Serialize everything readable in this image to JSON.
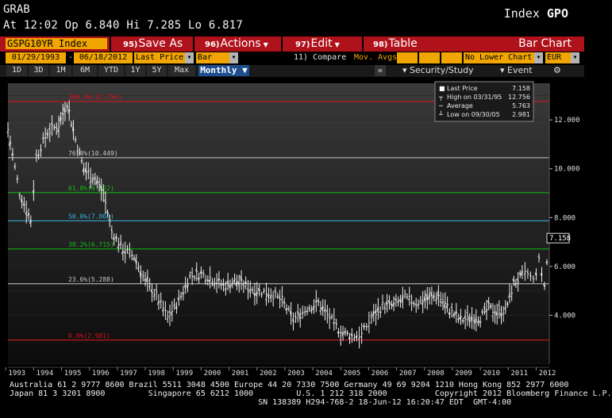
{
  "header": {
    "function": "GRAB",
    "quote_line": "At 12:02  Op 6.840 Hi 7.285 Lo 6.817",
    "index_label": "Index",
    "index_code": "GPO"
  },
  "toolbar": {
    "ticker": "GSPG10YR Index",
    "save_num": "95)",
    "save_label": "Save As",
    "actions_num": "96)",
    "actions_label": "Actions",
    "edit_num": "97)",
    "edit_label": "Edit",
    "table_num": "98)",
    "table_label": "Table",
    "chart_type": "Bar Chart"
  },
  "options": {
    "start_date": "01/29/1993",
    "end_date": "06/18/2012",
    "dash": "-",
    "field": "Last Price",
    "style": "Bar",
    "compare": "11) Compare",
    "mov_avgs": "Mov. Avgs",
    "lower_chart": "No Lower Chart",
    "currency": "EUR"
  },
  "periods": [
    "1D",
    "3D",
    "1M",
    "6M",
    "YTD",
    "1Y",
    "5Y",
    "Max"
  ],
  "period_selected": "Monthly",
  "right_tools": {
    "security_study": "Security/Study",
    "event": "Event"
  },
  "legend": {
    "rows": [
      {
        "label": "Last Price",
        "value": "7.158"
      },
      {
        "label": "High on 03/31/95",
        "value": "12.756"
      },
      {
        "label": "Average",
        "value": "5.763"
      },
      {
        "label": "Low on 09/30/05",
        "value": "2.981"
      }
    ]
  },
  "last_price_tag": "7.158",
  "fib_labels": [
    {
      "text": "100.0%(12.756)",
      "y": 12.756,
      "color": "#e0101c"
    },
    {
      "text": "76.4%(10.449)",
      "y": 10.449,
      "color": "#c8c8c8"
    },
    {
      "text": "61.8%(9.022)",
      "y": 9.022,
      "color": "#12c012"
    },
    {
      "text": "50.0%(7.868)",
      "y": 7.868,
      "color": "#34b6e0"
    },
    {
      "text": "38.2%(6.715)",
      "y": 6.715,
      "color": "#12c012"
    },
    {
      "text": "23.6%(5.288)",
      "y": 5.288,
      "color": "#c8c8c8"
    },
    {
      "text": "0.0%(2.981)",
      "y": 2.981,
      "color": "#e0101c"
    }
  ],
  "chart_data": {
    "type": "line",
    "ylim": [
      2.0,
      13.5
    ],
    "y_ticks": [
      "12.000",
      "10.000",
      "8.000",
      "6.000",
      "4.000"
    ],
    "y_tick_values": [
      12,
      10,
      8,
      6,
      4
    ],
    "x_ticks": [
      "1993",
      "1994",
      "1995",
      "1996",
      "1997",
      "1998",
      "1999",
      "2000",
      "2001",
      "2002",
      "2003",
      "2004",
      "2005",
      "2006",
      "2007",
      "2008",
      "2009",
      "2010",
      "2011",
      "2012"
    ],
    "x_range": [
      1993.08,
      2012.47
    ],
    "series": [
      {
        "x": [
          1993.08,
          1993.5,
          1993.9,
          1994.1,
          1994.5,
          1994.9,
          1995.2,
          1995.5,
          1995.8,
          1996.2,
          1996.5,
          1996.8,
          1997.2,
          1997.6,
          1998.0,
          1998.4,
          1998.8,
          1999.2,
          1999.6,
          2000.0,
          2000.4,
          2000.8,
          2001.2,
          2001.6,
          2002.0,
          2002.5,
          2002.9,
          2003.3,
          2003.8,
          2004.2,
          2004.6,
          2005.0,
          2005.4,
          2005.75,
          2006.1,
          2006.5,
          2006.9,
          2007.3,
          2007.7,
          2008.1,
          2008.5,
          2008.9,
          2009.3,
          2009.7,
          2010.0,
          2010.3,
          2010.6,
          2010.9,
          2011.2,
          2011.5,
          2011.7,
          2011.9,
          2012.1,
          2012.3,
          2012.47
        ],
        "values": [
          11.6,
          9.0,
          7.9,
          10.5,
          11.5,
          11.8,
          12.7,
          11.2,
          10.0,
          9.6,
          9.0,
          7.4,
          6.7,
          6.4,
          5.4,
          4.8,
          3.9,
          4.6,
          5.6,
          5.7,
          5.5,
          5.2,
          5.4,
          5.2,
          5.0,
          4.9,
          4.6,
          3.8,
          4.3,
          4.5,
          3.9,
          3.3,
          3.15,
          3.2,
          3.9,
          4.4,
          4.4,
          4.7,
          4.5,
          4.7,
          4.8,
          4.2,
          3.8,
          3.9,
          3.9,
          4.3,
          4.1,
          4.2,
          5.3,
          5.6,
          5.7,
          5.4,
          6.2,
          5.2,
          7.158
        ]
      }
    ]
  },
  "footer": {
    "line1": "Australia 61 2 9777 8600 Brazil 5511 3048 4500 Europe 44 20 7330 7500 Germany 49 69 9204 1210 Hong Kong 852 2977 6000",
    "line2": "Japan 81 3 3201 8900         Singapore 65 6212 1000         U.S. 1 212 318 2000          Copyright 2012 Bloomberg Finance L.P.",
    "line3": "                                                    SN 138389 H294-768-2 18-Jun-12 16:20:47 EDT  GMT-4:00"
  }
}
